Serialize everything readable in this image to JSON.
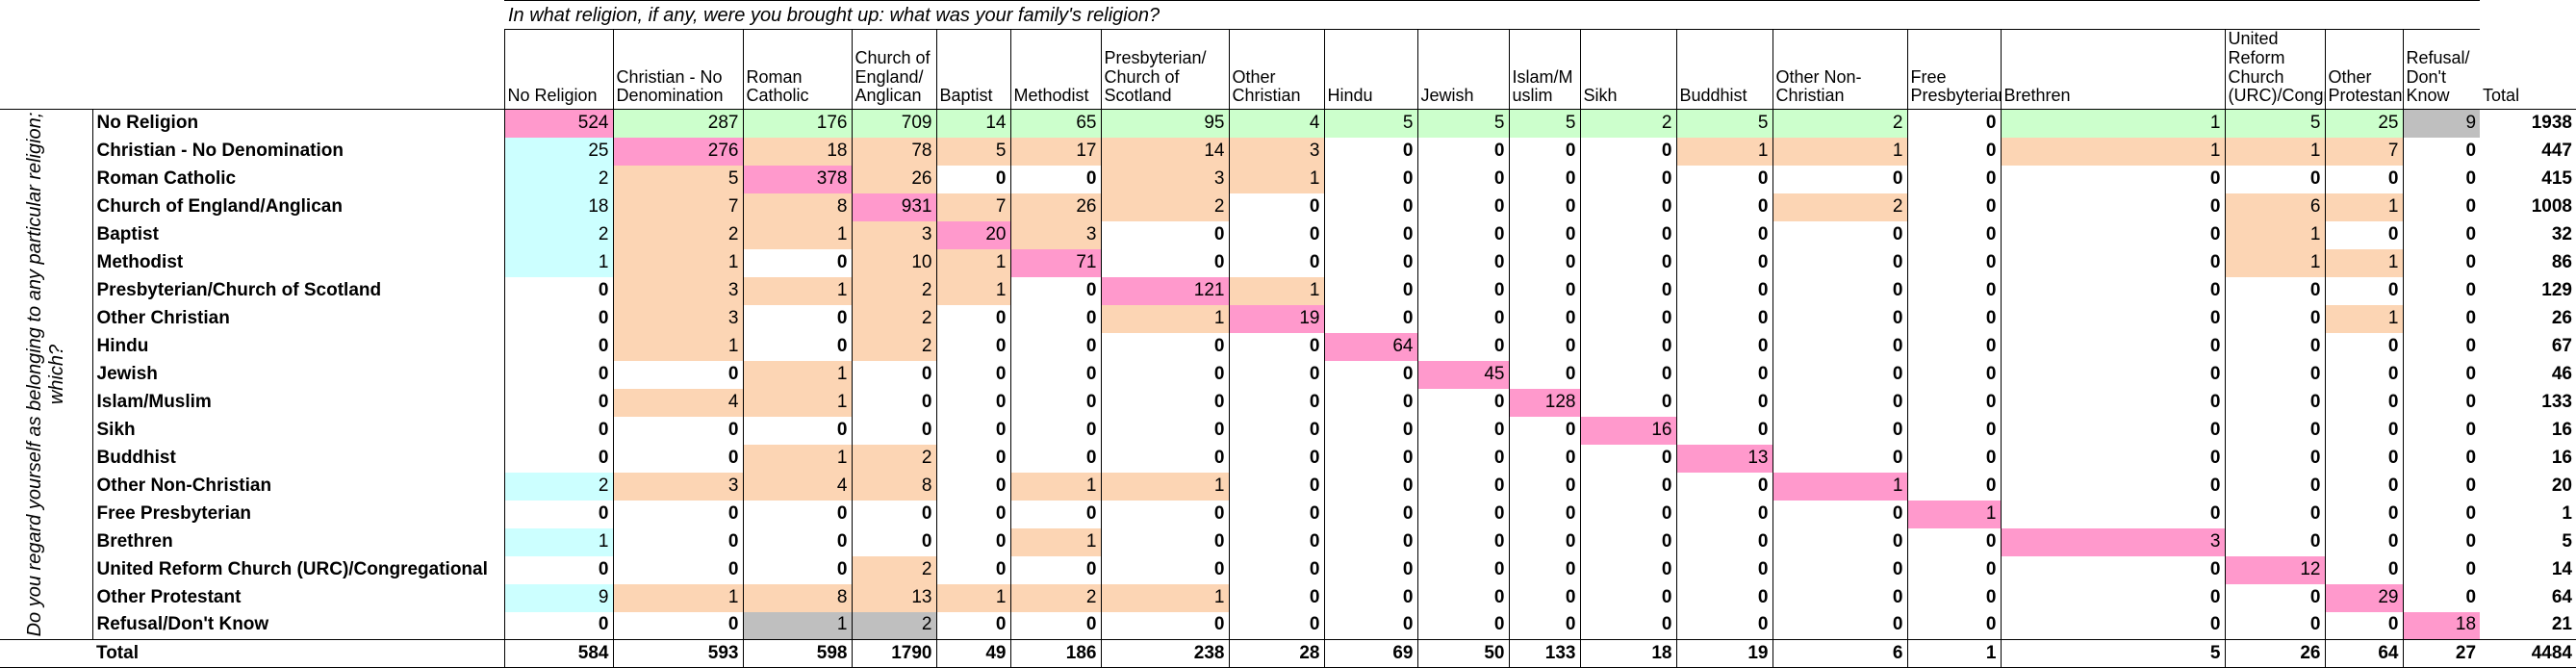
{
  "question_top": "In what religion, if any, were you brought up: what was your family's religion?",
  "question_side": "Do you regard yourself as belonging to any particular religion; which?",
  "columns": [
    "No Religion",
    "Christian - No Denomination",
    "Roman Catholic",
    "Church of England/ Anglican",
    "Baptist",
    "Methodist",
    "Presbyterian/ Church of Scotland",
    "Other Christian",
    "Hindu",
    "Jewish",
    "Islam/M uslim",
    "Sikh",
    "Buddhist",
    "Other Non-Christian",
    "Free Presbyterian",
    "Brethren",
    "United Reform Church (URC)/Congregational",
    "Other Protestant",
    "Refusal/ Don't Know",
    "Total"
  ],
  "total_label": "Total",
  "colors": {
    "pink": "#ff99cc",
    "blue": "#ccffff",
    "orange": "#fcd5b4",
    "green": "#ccffcc",
    "grey": "#bfbfbf"
  },
  "chart_data": {
    "type": "table",
    "x_title": "In what religion, if any, were you brought up: what was your family's religion?",
    "y_title": "Do you regard yourself as belonging to any particular religion; which?",
    "columns": [
      "No Religion",
      "Christian - No Denomination",
      "Roman Catholic",
      "Church of England/ Anglican",
      "Baptist",
      "Methodist",
      "Presbyterian/ Church of Scotland",
      "Other Christian",
      "Hindu",
      "Jewish",
      "Islam/M uslim",
      "Sikh",
      "Buddhist",
      "Other Non-Christian",
      "Free Presbyterian",
      "Brethren",
      "United Reform Church (URC)/Congregational",
      "Other Protestant",
      "Refusal/ Don't Know"
    ],
    "rows": [
      {
        "label": "No Religion",
        "values": [
          524,
          287,
          176,
          709,
          14,
          65,
          95,
          4,
          5,
          5,
          5,
          2,
          5,
          2,
          0,
          1,
          5,
          25,
          9
        ],
        "total": 1938
      },
      {
        "label": "Christian - No Denomination",
        "values": [
          25,
          276,
          18,
          78,
          5,
          17,
          14,
          3,
          0,
          0,
          0,
          0,
          1,
          1,
          0,
          1,
          1,
          7,
          0
        ],
        "total": 447
      },
      {
        "label": "Roman Catholic",
        "values": [
          2,
          5,
          378,
          26,
          0,
          0,
          3,
          1,
          0,
          0,
          0,
          0,
          0,
          0,
          0,
          0,
          0,
          0,
          0
        ],
        "total": 415
      },
      {
        "label": "Church of England/Anglican",
        "values": [
          18,
          7,
          8,
          931,
          7,
          26,
          2,
          0,
          0,
          0,
          0,
          0,
          0,
          2,
          0,
          0,
          6,
          1,
          0
        ],
        "total": 1008
      },
      {
        "label": "Baptist",
        "values": [
          2,
          2,
          1,
          3,
          20,
          3,
          0,
          0,
          0,
          0,
          0,
          0,
          0,
          0,
          0,
          0,
          1,
          0,
          0
        ],
        "total": 32
      },
      {
        "label": "Methodist",
        "values": [
          1,
          1,
          0,
          10,
          1,
          71,
          0,
          0,
          0,
          0,
          0,
          0,
          0,
          0,
          0,
          0,
          1,
          1,
          0
        ],
        "total": 86
      },
      {
        "label": "Presbyterian/Church of Scotland",
        "values": [
          0,
          3,
          1,
          2,
          1,
          0,
          121,
          1,
          0,
          0,
          0,
          0,
          0,
          0,
          0,
          0,
          0,
          0,
          0
        ],
        "total": 129
      },
      {
        "label": "Other Christian",
        "values": [
          0,
          3,
          0,
          2,
          0,
          0,
          1,
          19,
          0,
          0,
          0,
          0,
          0,
          0,
          0,
          0,
          0,
          1,
          0
        ],
        "total": 26
      },
      {
        "label": "Hindu",
        "values": [
          0,
          1,
          0,
          2,
          0,
          0,
          0,
          0,
          64,
          0,
          0,
          0,
          0,
          0,
          0,
          0,
          0,
          0,
          0
        ],
        "total": 67
      },
      {
        "label": "Jewish",
        "values": [
          0,
          0,
          1,
          0,
          0,
          0,
          0,
          0,
          0,
          45,
          0,
          0,
          0,
          0,
          0,
          0,
          0,
          0,
          0
        ],
        "total": 46
      },
      {
        "label": "Islam/Muslim",
        "values": [
          0,
          4,
          1,
          0,
          0,
          0,
          0,
          0,
          0,
          0,
          128,
          0,
          0,
          0,
          0,
          0,
          0,
          0,
          0
        ],
        "total": 133
      },
      {
        "label": "Sikh",
        "values": [
          0,
          0,
          0,
          0,
          0,
          0,
          0,
          0,
          0,
          0,
          0,
          16,
          0,
          0,
          0,
          0,
          0,
          0,
          0
        ],
        "total": 16
      },
      {
        "label": "Buddhist",
        "values": [
          0,
          0,
          1,
          2,
          0,
          0,
          0,
          0,
          0,
          0,
          0,
          0,
          13,
          0,
          0,
          0,
          0,
          0,
          0
        ],
        "total": 16
      },
      {
        "label": "Other Non-Christian",
        "values": [
          2,
          3,
          4,
          8,
          0,
          1,
          1,
          0,
          0,
          0,
          0,
          0,
          0,
          1,
          0,
          0,
          0,
          0,
          0
        ],
        "total": 20
      },
      {
        "label": "Free Presbyterian",
        "values": [
          0,
          0,
          0,
          0,
          0,
          0,
          0,
          0,
          0,
          0,
          0,
          0,
          0,
          0,
          1,
          0,
          0,
          0,
          0
        ],
        "total": 1
      },
      {
        "label": "Brethren",
        "values": [
          1,
          0,
          0,
          0,
          0,
          1,
          0,
          0,
          0,
          0,
          0,
          0,
          0,
          0,
          0,
          3,
          0,
          0,
          0
        ],
        "total": 5
      },
      {
        "label": "United Reform Church (URC)/Congregational",
        "values": [
          0,
          0,
          0,
          2,
          0,
          0,
          0,
          0,
          0,
          0,
          0,
          0,
          0,
          0,
          0,
          0,
          12,
          0,
          0
        ],
        "total": 14
      },
      {
        "label": "Other Protestant",
        "values": [
          9,
          1,
          8,
          13,
          1,
          2,
          1,
          0,
          0,
          0,
          0,
          0,
          0,
          0,
          0,
          0,
          0,
          29,
          0
        ],
        "total": 64
      },
      {
        "label": "Refusal/Don't Know",
        "values": [
          0,
          0,
          1,
          2,
          0,
          0,
          0,
          0,
          0,
          0,
          0,
          0,
          0,
          0,
          0,
          0,
          0,
          0,
          18
        ],
        "total": 21
      }
    ],
    "column_totals": [
      584,
      593,
      598,
      1790,
      49,
      186,
      238,
      28,
      69,
      50,
      133,
      18,
      19,
      6,
      1,
      5,
      26,
      64,
      27
    ],
    "grand_total": 4484,
    "highlight": {
      "diagonal": "pink",
      "first_row_off_diagonal": "green",
      "first_column_below": "blue",
      "lower_left": "orange",
      "upper_right": "orange",
      "refusal": "grey"
    }
  }
}
